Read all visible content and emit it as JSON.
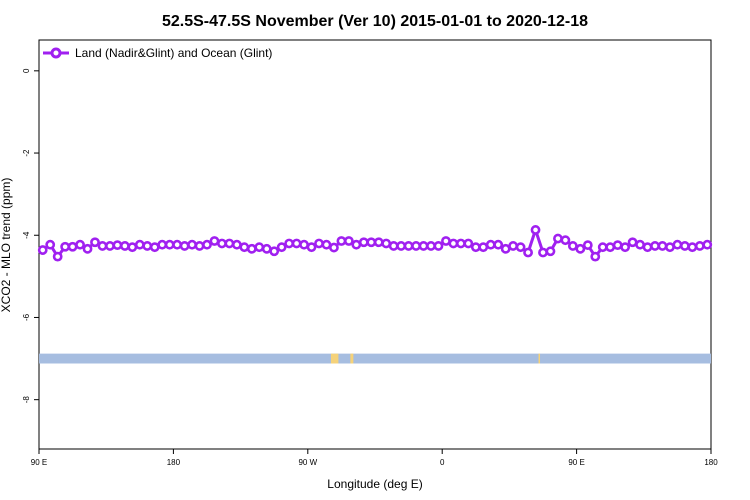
{
  "chart_data": {
    "type": "line",
    "title": "52.5S-47.5S November (Ver 10)   2015-01-01 to 2020-12-18",
    "xlabel": "Longitude (deg E)",
    "ylabel": "XCO2 - MLO trend (ppm)",
    "x_ticks": [
      {
        "value": 90,
        "label": "90 E"
      },
      {
        "value": 180,
        "label": "180"
      },
      {
        "value": 270,
        "label": "90 W"
      },
      {
        "value": 360,
        "label": "0"
      },
      {
        "value": 450,
        "label": "90 E"
      },
      {
        "value": 540,
        "label": "180"
      }
    ],
    "y_ticks": [
      {
        "value": 0,
        "label": "0"
      },
      {
        "value": -2,
        "label": "-2"
      },
      {
        "value": -4,
        "label": "-4"
      },
      {
        "value": -6,
        "label": "-6"
      },
      {
        "value": -8,
        "label": "-8"
      }
    ],
    "xlim": [
      90,
      540
    ],
    "ylim": [
      -9.2,
      0.75
    ],
    "legend": {
      "position": "top-left"
    },
    "series": [
      {
        "name": "Land (Nadir&Glint) and Ocean (Glint)",
        "color": "#a020f0",
        "x": [
          92.5,
          97.5,
          102.5,
          107.5,
          112.5,
          117.5,
          122.5,
          127.5,
          132.5,
          137.5,
          142.5,
          147.5,
          152.5,
          157.5,
          162.5,
          167.5,
          172.5,
          177.5,
          182.5,
          187.5,
          192.5,
          197.5,
          202.5,
          207.5,
          212.5,
          217.5,
          222.5,
          227.5,
          232.5,
          237.5,
          242.5,
          247.5,
          252.5,
          257.5,
          262.5,
          267.5,
          272.5,
          277.5,
          282.5,
          287.5,
          292.5,
          297.5,
          302.5,
          307.5,
          312.5,
          317.5,
          322.5,
          327.5,
          332.5,
          337.5,
          342.5,
          347.5,
          352.5,
          357.5,
          362.5,
          367.5,
          372.5,
          377.5,
          382.5,
          387.5,
          392.5,
          397.5,
          402.5,
          407.5,
          412.5,
          417.5,
          422.5,
          427.5,
          432.5,
          437.5,
          442.5,
          447.5,
          452.5,
          457.5,
          462.5,
          467.5,
          472.5,
          477.5,
          482.5,
          487.5,
          492.5,
          497.5,
          502.5,
          507.5,
          512.5,
          517.5,
          522.5,
          527.5,
          532.5,
          537.5
        ],
        "y": [
          -4.36,
          -4.23,
          -4.52,
          -4.28,
          -4.28,
          -4.23,
          -4.33,
          -4.17,
          -4.26,
          -4.26,
          -4.24,
          -4.26,
          -4.29,
          -4.23,
          -4.26,
          -4.29,
          -4.23,
          -4.23,
          -4.23,
          -4.26,
          -4.23,
          -4.26,
          -4.23,
          -4.14,
          -4.2,
          -4.2,
          -4.23,
          -4.29,
          -4.33,
          -4.29,
          -4.33,
          -4.39,
          -4.29,
          -4.2,
          -4.2,
          -4.23,
          -4.29,
          -4.2,
          -4.23,
          -4.3,
          -4.14,
          -4.14,
          -4.23,
          -4.17,
          -4.17,
          -4.17,
          -4.2,
          -4.26,
          -4.26,
          -4.26,
          -4.26,
          -4.26,
          -4.26,
          -4.26,
          -4.14,
          -4.2,
          -4.2,
          -4.2,
          -4.29,
          -4.29,
          -4.23,
          -4.23,
          -4.33,
          -4.26,
          -4.29,
          -4.42,
          -3.87,
          -4.42,
          -4.39,
          -4.08,
          -4.12,
          -4.26,
          -4.33,
          -4.24,
          -4.52,
          -4.29,
          -4.29,
          -4.24,
          -4.29,
          -4.17,
          -4.23,
          -4.29,
          -4.26,
          -4.26,
          -4.29,
          -4.23,
          -4.26,
          -4.29,
          -4.26,
          -4.23
        ]
      }
    ],
    "surface_band": {
      "y_range": [
        -6.88,
        -7.12
      ],
      "ocean_color": "#a6bde0",
      "land_color": "#f5d27a",
      "land_segments": [
        [
          285.5,
          290.5
        ],
        [
          298.5,
          300.5
        ],
        [
          424.5,
          425.5
        ]
      ]
    }
  }
}
